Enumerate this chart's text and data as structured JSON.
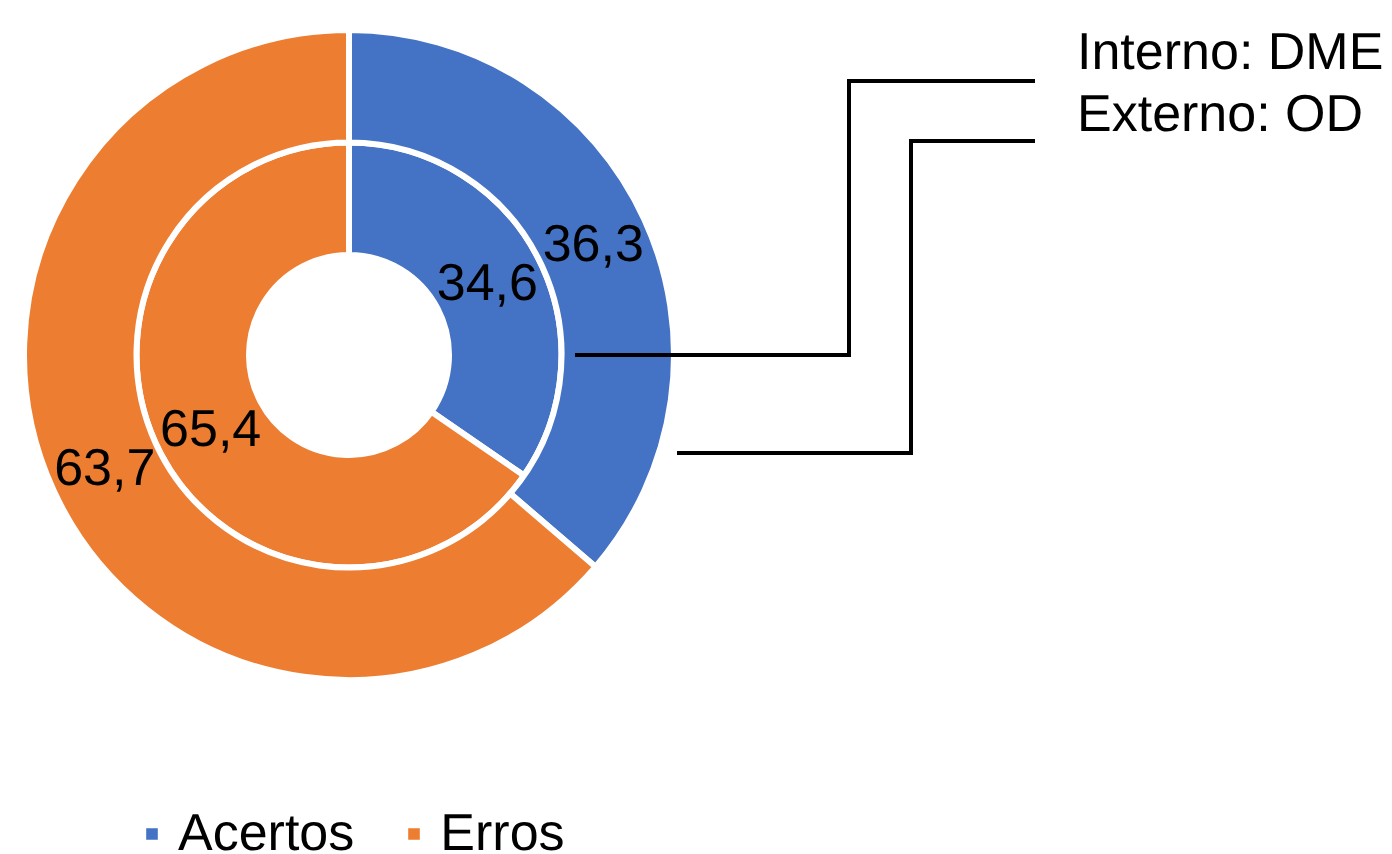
{
  "chart_data": {
    "type": "donut",
    "categories": [
      "Acertos",
      "Erros"
    ],
    "colors": [
      "#4472c4",
      "#ed7d31"
    ],
    "series": [
      {
        "name": "Interno: DME",
        "values": [
          34.6,
          65.4
        ],
        "value_labels": [
          "34,6",
          "65,4"
        ]
      },
      {
        "name": "Externo: OD",
        "values": [
          36.3,
          63.7
        ],
        "value_labels": [
          "36,3",
          "63,7"
        ]
      }
    ],
    "legend": "bottom"
  }
}
